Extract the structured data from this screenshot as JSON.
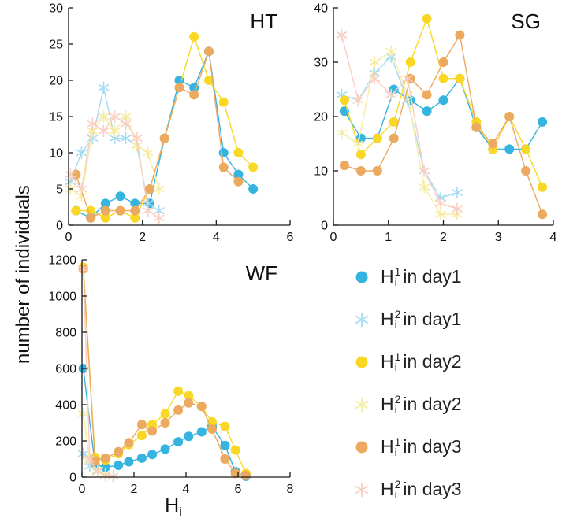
{
  "figure": {
    "ylabel": "number of individuals",
    "xlabel": {
      "base": "H",
      "sub": "i"
    }
  },
  "colors": {
    "day1_circle": "#35b4e0",
    "day1_asterisk": "#a6dbf2",
    "day2_circle": "#f8d824",
    "day2_asterisk": "#f7eb9f",
    "day3_circle": "#eca960",
    "day3_asterisk": "#f8cfc0",
    "axis": "#1a1a1a",
    "text": "#111111"
  },
  "legend": {
    "items": [
      {
        "marker": "circle",
        "color": "#35b4e0",
        "base": "H",
        "sup": "1",
        "sub": "i",
        "suffix": " in day1"
      },
      {
        "marker": "asterisk",
        "color": "#a6dbf2",
        "base": "H",
        "sup": "2",
        "sub": "i",
        "suffix": " in day1"
      },
      {
        "marker": "circle",
        "color": "#f8d824",
        "base": "H",
        "sup": "1",
        "sub": "i",
        "suffix": " in day2"
      },
      {
        "marker": "asterisk",
        "color": "#f7eb9f",
        "base": "H",
        "sup": "2",
        "sub": "i",
        "suffix": " in day2"
      },
      {
        "marker": "circle",
        "color": "#eca960",
        "base": "H",
        "sup": "1",
        "sub": "i",
        "suffix": " in day3"
      },
      {
        "marker": "asterisk",
        "color": "#f8cfc0",
        "base": "H",
        "sup": "2",
        "sub": "i",
        "suffix": " in day3"
      }
    ]
  },
  "chart_data": [
    {
      "id": "HT",
      "type": "line",
      "title": "HT",
      "xlabel": "Hi",
      "ylabel": "number of individuals",
      "xlim": [
        0,
        6
      ],
      "ylim": [
        0,
        30
      ],
      "xticks": [
        0,
        2,
        4,
        6
      ],
      "yticks": [
        0,
        5,
        10,
        15,
        20,
        25,
        30
      ],
      "series": [
        {
          "name": "Hi1 in day1",
          "marker": "circle",
          "color": "#35b4e0",
          "x": [
            0.2,
            0.6,
            1.0,
            1.4,
            1.8,
            2.2,
            2.6,
            3.0,
            3.4,
            3.8,
            4.2,
            4.6,
            5.0
          ],
          "y": [
            2,
            1,
            3,
            4,
            3,
            3,
            12,
            20,
            19,
            24,
            10,
            7,
            5
          ]
        },
        {
          "name": "Hi2 in day1",
          "marker": "asterisk",
          "color": "#a6dbf2",
          "x": [
            0.05,
            0.35,
            0.65,
            0.95,
            1.25,
            1.55,
            1.85,
            2.15,
            2.45
          ],
          "y": [
            6,
            10,
            12,
            19,
            12,
            12,
            11,
            3,
            2
          ]
        },
        {
          "name": "Hi1 in day2",
          "marker": "circle",
          "color": "#f8d824",
          "x": [
            0.2,
            0.6,
            1.0,
            1.4,
            1.8,
            2.2,
            2.6,
            3.0,
            3.4,
            3.8,
            4.2,
            4.6,
            5.0
          ],
          "y": [
            2,
            2,
            1,
            2,
            1,
            5,
            12,
            19,
            26,
            20,
            17,
            10,
            8
          ]
        },
        {
          "name": "Hi2 in day2",
          "marker": "asterisk",
          "color": "#f7eb9f",
          "x": [
            0.05,
            0.35,
            0.65,
            0.95,
            1.25,
            1.55,
            1.85,
            2.15,
            2.45
          ],
          "y": [
            5,
            4,
            13,
            15,
            13,
            15,
            11,
            10,
            5
          ]
        },
        {
          "name": "Hi1 in day3",
          "marker": "circle",
          "color": "#eca960",
          "x": [
            0.2,
            0.6,
            1.0,
            1.4,
            1.8,
            2.2,
            2.6,
            3.0,
            3.4,
            3.8,
            4.2,
            4.6
          ],
          "y": [
            7,
            1,
            2,
            2,
            2,
            5,
            12,
            19,
            18,
            24,
            8,
            6
          ]
        },
        {
          "name": "Hi2 in day3",
          "marker": "asterisk",
          "color": "#f8cfc0",
          "x": [
            0.05,
            0.35,
            0.65,
            0.95,
            1.25,
            1.55,
            1.85,
            2.15,
            2.45
          ],
          "y": [
            7,
            5,
            14,
            13,
            15,
            14,
            12,
            2,
            1
          ]
        }
      ]
    },
    {
      "id": "SG",
      "type": "line",
      "title": "SG",
      "xlabel": "Hi",
      "ylabel": "number of individuals",
      "xlim": [
        0,
        4
      ],
      "ylim": [
        0,
        40
      ],
      "xticks": [
        0,
        1,
        2,
        3,
        4
      ],
      "yticks": [
        0,
        10,
        20,
        30,
        40
      ],
      "series": [
        {
          "name": "Hi1 in day1",
          "marker": "circle",
          "color": "#35b4e0",
          "x": [
            0.2,
            0.5,
            0.8,
            1.1,
            1.4,
            1.7,
            2.0,
            2.3,
            2.6,
            2.9,
            3.2,
            3.5,
            3.8
          ],
          "y": [
            21,
            16,
            16,
            25,
            23,
            21,
            23,
            27,
            18,
            14,
            14,
            14,
            19
          ]
        },
        {
          "name": "Hi2 in day1",
          "marker": "asterisk",
          "color": "#a6dbf2",
          "x": [
            0.15,
            0.45,
            0.75,
            1.05,
            1.35,
            1.65,
            1.95,
            2.25
          ],
          "y": [
            24,
            23,
            28,
            31,
            23,
            10,
            5,
            6
          ]
        },
        {
          "name": "Hi1 in day2",
          "marker": "circle",
          "color": "#f8d824",
          "x": [
            0.2,
            0.5,
            0.8,
            1.1,
            1.4,
            1.7,
            2.0,
            2.3,
            2.6,
            2.9,
            3.2,
            3.5,
            3.8
          ],
          "y": [
            23,
            13,
            16,
            19,
            30,
            38,
            27,
            27,
            19,
            14,
            20,
            14,
            7
          ]
        },
        {
          "name": "Hi2 in day2",
          "marker": "asterisk",
          "color": "#f7eb9f",
          "x": [
            0.15,
            0.45,
            0.75,
            1.05,
            1.35,
            1.65,
            1.95,
            2.25
          ],
          "y": [
            17,
            15,
            30,
            32,
            24,
            7,
            2,
            2
          ]
        },
        {
          "name": "Hi1 in day3",
          "marker": "circle",
          "color": "#eca960",
          "x": [
            0.2,
            0.5,
            0.8,
            1.1,
            1.4,
            1.7,
            2.0,
            2.3,
            2.6,
            2.9,
            3.2,
            3.5,
            3.8
          ],
          "y": [
            11,
            10,
            10,
            16,
            27,
            24,
            30,
            35,
            18,
            15,
            20,
            10,
            2
          ]
        },
        {
          "name": "Hi2 in day3",
          "marker": "asterisk",
          "color": "#f8cfc0",
          "x": [
            0.15,
            0.45,
            0.75,
            1.05,
            1.35,
            1.65,
            1.95,
            2.25
          ],
          "y": [
            35,
            23,
            27,
            24,
            27,
            10,
            4,
            3
          ]
        }
      ]
    },
    {
      "id": "WF",
      "type": "line",
      "title": "WF",
      "xlabel": "Hi",
      "ylabel": "number of individuals",
      "xlim": [
        0,
        8
      ],
      "ylim": [
        0,
        1200
      ],
      "xticks": [
        0,
        2,
        4,
        6,
        8
      ],
      "yticks": [
        0,
        200,
        400,
        600,
        800,
        1000,
        1200
      ],
      "series": [
        {
          "name": "Hi1 in day1",
          "marker": "circle",
          "color": "#35b4e0",
          "x": [
            0.05,
            0.5,
            0.9,
            1.4,
            1.8,
            2.3,
            2.7,
            3.2,
            3.7,
            4.1,
            4.6,
            5.0,
            5.5,
            5.9,
            6.3
          ],
          "y": [
            600,
            70,
            55,
            65,
            85,
            105,
            125,
            155,
            195,
            225,
            250,
            280,
            175,
            30,
            5
          ]
        },
        {
          "name": "Hi2 in day1",
          "marker": "asterisk",
          "color": "#a6dbf2",
          "x": [
            0.05,
            0.3,
            0.6,
            0.9,
            1.2
          ],
          "y": [
            130,
            60,
            35,
            15,
            5
          ]
        },
        {
          "name": "Hi1 in day2",
          "marker": "circle",
          "color": "#f8d824",
          "x": [
            0.05,
            0.5,
            0.9,
            1.4,
            1.8,
            2.3,
            2.7,
            3.2,
            3.7,
            4.1,
            4.6,
            5.0,
            5.5,
            5.9,
            6.3
          ],
          "y": [
            1160,
            110,
            95,
            130,
            180,
            230,
            290,
            350,
            475,
            450,
            390,
            305,
            280,
            150,
            20
          ]
        },
        {
          "name": "Hi2 in day2",
          "marker": "asterisk",
          "color": "#f7eb9f",
          "x": [
            0.05,
            0.3,
            0.6,
            0.9,
            1.2
          ],
          "y": [
            350,
            90,
            40,
            15,
            5
          ]
        },
        {
          "name": "Hi1 in day3",
          "marker": "circle",
          "color": "#eca960",
          "x": [
            0.05,
            0.5,
            0.9,
            1.4,
            1.8,
            2.3,
            2.7,
            3.2,
            3.7,
            4.1,
            4.6,
            5.0,
            5.5,
            5.9,
            6.3
          ],
          "y": [
            1150,
            90,
            105,
            140,
            190,
            290,
            255,
            300,
            370,
            410,
            390,
            265,
            100,
            20,
            10
          ]
        },
        {
          "name": "Hi2 in day3",
          "marker": "asterisk",
          "color": "#f8cfc0",
          "x": [
            0.05,
            0.3,
            0.6,
            0.9,
            1.2
          ],
          "y": [
            1150,
            100,
            30,
            10,
            5
          ]
        }
      ]
    }
  ]
}
